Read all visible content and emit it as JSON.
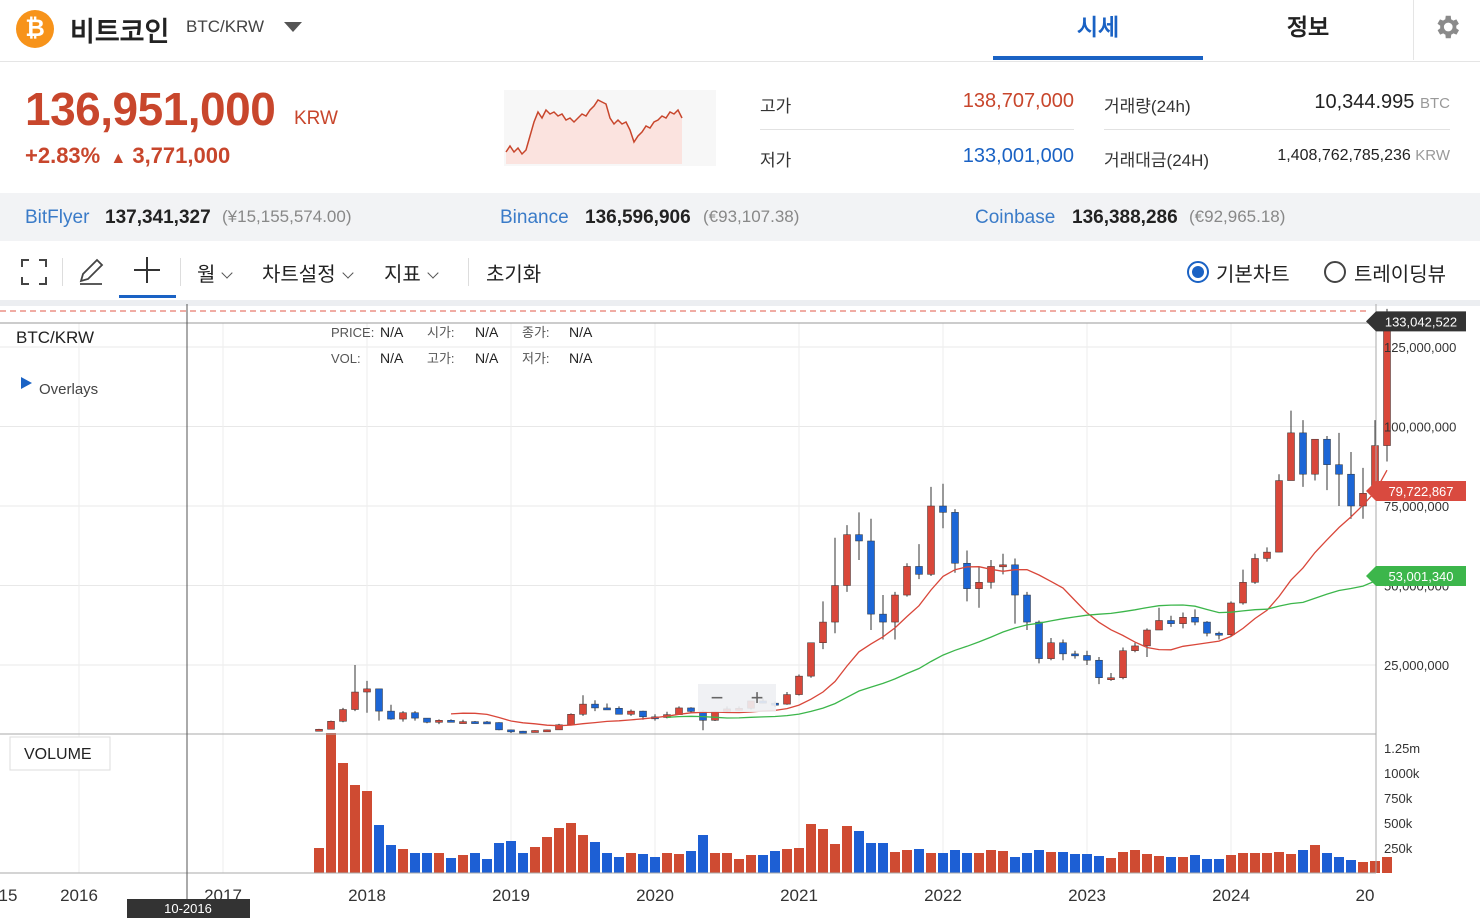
{
  "header": {
    "coin_symbol_glyph": "₿",
    "coin_name": "비트코인",
    "pair": "BTC/KRW",
    "tabs": [
      {
        "label": "시세",
        "active": true
      },
      {
        "label": "정보",
        "active": false
      }
    ]
  },
  "price": {
    "current": "136,951,000",
    "currency": "KRW",
    "change_pct": "+2.83%",
    "change_arrow": "▲",
    "change_abs": "3,771,000"
  },
  "stats": {
    "high_label": "고가",
    "high": "138,707,000",
    "low_label": "저가",
    "low": "133,001,000",
    "volume_label": "거래량(24h)",
    "volume": "10,344.995",
    "volume_unit": "BTC",
    "value_label": "거래대금(24H)",
    "value": "1,408,762,785,236",
    "value_unit": "KRW"
  },
  "exchanges": [
    {
      "name": "BitFlyer",
      "price": "137,341,327",
      "converted": "(¥15,155,574.00)"
    },
    {
      "name": "Binance",
      "price": "136,596,906",
      "converted": "(€93,107.38)"
    },
    {
      "name": "Coinbase",
      "price": "136,388,286",
      "converted": "(€92,965.18)"
    }
  ],
  "toolbar": {
    "period": "월",
    "chart_settings": "차트설정",
    "indicators": "지표",
    "reset": "초기화",
    "view_basic": "기본차트",
    "view_tradingview": "트레이딩뷰",
    "selected_view": "기본차트"
  },
  "chart": {
    "symbol": "BTC/KRW",
    "overlays_label": "Overlays",
    "info": {
      "price_label": "PRICE:",
      "price": "N/A",
      "open_label": "시가:",
      "open": "N/A",
      "close_label": "종가:",
      "close": "N/A",
      "vol_label": "VOL:",
      "vol": "N/A",
      "high_label": "고가:",
      "high": "N/A",
      "low_label": "저가:",
      "low": "N/A"
    },
    "price_axis_ticks": [
      {
        "value": 125000000,
        "label": "125,000,000"
      },
      {
        "value": 100000000,
        "label": "100,000,000"
      },
      {
        "value": 75000000,
        "label": "75,000,000"
      },
      {
        "value": 50000000,
        "label": "50,000,000"
      },
      {
        "value": 25000000,
        "label": "25,000,000"
      }
    ],
    "price_tags": [
      {
        "value": 133042522,
        "label": "133,042,522",
        "color": "#333333"
      },
      {
        "value": 79722867,
        "label": "79,722,867",
        "color": "#d94a3f"
      },
      {
        "value": 53001340,
        "label": "53,001,340",
        "color": "#3cb64b"
      }
    ],
    "volume_label": "VOLUME",
    "volume_ticks": [
      "1.25m",
      "1000k",
      "750k",
      "500k",
      "250k"
    ],
    "x_labels": [
      "15",
      "2016",
      "2017",
      "2018",
      "2019",
      "2020",
      "2021",
      "2022",
      "2023",
      "2024",
      "20"
    ],
    "crosshair_date": "10-2016",
    "zoom_out": "−",
    "zoom_in": "+",
    "up_color": "#d9473a",
    "down_color": "#1c66d6",
    "ma_short_color": "#d9473a",
    "ma_long_color": "#3cb64b"
  },
  "chart_data": {
    "type": "candlestick",
    "xlabel": "",
    "ylabel": "",
    "ylim": [
      0,
      137000000
    ],
    "series": [
      {
        "name": "BTC/KRW",
        "x_start": "2017-09",
        "ohlc": [
          [
            4800000,
            4900000,
            4500000,
            4800000
          ],
          [
            4800000,
            7500000,
            4700000,
            7300000
          ],
          [
            7300000,
            11500000,
            7000000,
            11000000
          ],
          [
            11000000,
            25000000,
            10500000,
            16500000
          ],
          [
            16500000,
            20000000,
            10000000,
            17500000
          ],
          [
            17500000,
            17500000,
            7500000,
            10500000
          ],
          [
            10500000,
            12500000,
            7800000,
            8000000
          ],
          [
            8000000,
            10500000,
            7200000,
            10000000
          ],
          [
            10000000,
            10500000,
            7500000,
            8300000
          ],
          [
            8300000,
            8300000,
            6700000,
            7000000
          ],
          [
            7000000,
            7900000,
            6400000,
            7600000
          ],
          [
            7600000,
            7900000,
            7000000,
            7100000
          ],
          [
            7100000,
            7800000,
            6900000,
            7200000
          ],
          [
            7200000,
            7400000,
            6700000,
            7100000
          ],
          [
            7100000,
            7400000,
            6600000,
            6900000
          ],
          [
            6900000,
            7000000,
            4500000,
            4600000
          ],
          [
            4600000,
            4700000,
            3400000,
            4200000
          ],
          [
            4200000,
            4300000,
            3700000,
            3900000
          ],
          [
            3900000,
            4500000,
            3800000,
            4400000
          ],
          [
            4400000,
            4700000,
            4300000,
            4600000
          ],
          [
            4600000,
            6500000,
            4600000,
            6200000
          ],
          [
            6200000,
            9800000,
            6100000,
            9500000
          ],
          [
            9500000,
            15500000,
            9000000,
            12700000
          ],
          [
            12700000,
            13900000,
            10500000,
            11500000
          ],
          [
            11500000,
            12900000,
            11000000,
            11400000
          ],
          [
            11400000,
            12000000,
            9500000,
            9500000
          ],
          [
            9500000,
            11000000,
            9000000,
            10500000
          ],
          [
            10500000,
            10600000,
            7800000,
            8700000
          ],
          [
            8700000,
            9500000,
            7500000,
            8500000
          ],
          [
            8500000,
            10300000,
            8200000,
            9400000
          ],
          [
            9400000,
            12000000,
            9300000,
            11500000
          ],
          [
            11500000,
            11700000,
            10000000,
            10400000
          ],
          [
            10400000,
            10800000,
            4500000,
            7600000
          ],
          [
            7600000,
            10600000,
            7400000,
            10400000
          ],
          [
            10400000,
            12000000,
            10200000,
            11200000
          ],
          [
            11200000,
            12000000,
            10600000,
            11400000
          ],
          [
            11400000,
            13700000,
            11000000,
            13700000
          ],
          [
            13700000,
            14500000,
            12900000,
            13000000
          ],
          [
            13000000,
            13500000,
            11800000,
            12700000
          ],
          [
            12700000,
            16500000,
            12500000,
            15700000
          ],
          [
            15700000,
            22000000,
            15400000,
            21500000
          ],
          [
            21500000,
            32000000,
            21000000,
            32000000
          ],
          [
            32000000,
            45000000,
            30000000,
            38500000
          ],
          [
            38500000,
            65000000,
            35000000,
            50000000
          ],
          [
            50000000,
            69000000,
            48000000,
            66000000
          ],
          [
            66000000,
            73000000,
            58000000,
            64000000
          ],
          [
            64000000,
            71000000,
            36000000,
            41000000
          ],
          [
            41000000,
            47000000,
            33000000,
            38500000
          ],
          [
            38500000,
            48000000,
            33000000,
            47000000
          ],
          [
            47000000,
            57000000,
            46500000,
            56000000
          ],
          [
            56000000,
            63000000,
            52000000,
            53500000
          ],
          [
            53500000,
            81000000,
            53000000,
            75000000
          ],
          [
            75000000,
            82000000,
            68000000,
            73000000
          ],
          [
            73000000,
            74000000,
            54000000,
            57000000
          ],
          [
            57000000,
            61000000,
            45000000,
            49000000
          ],
          [
            49000000,
            56000000,
            43000000,
            51000000
          ],
          [
            51000000,
            58000000,
            49000000,
            56000000
          ],
          [
            56000000,
            60000000,
            53500000,
            56500000
          ],
          [
            56500000,
            58500000,
            38000000,
            47000000
          ],
          [
            47000000,
            48000000,
            36000000,
            38500000
          ],
          [
            38500000,
            39000000,
            25500000,
            27000000
          ],
          [
            27000000,
            33500000,
            26500000,
            32000000
          ],
          [
            32000000,
            33000000,
            26500000,
            28500000
          ],
          [
            28500000,
            29500000,
            27000000,
            28000000
          ],
          [
            28000000,
            29500000,
            25000000,
            26500000
          ],
          [
            26500000,
            27500000,
            19000000,
            21000000
          ],
          [
            21000000,
            22500000,
            20000000,
            21000000
          ],
          [
            21000000,
            30500000,
            20500000,
            29500000
          ],
          [
            29500000,
            32000000,
            29000000,
            31000000
          ],
          [
            31000000,
            36500000,
            27500000,
            36000000
          ],
          [
            36000000,
            43000000,
            36000000,
            39000000
          ],
          [
            39000000,
            40500000,
            37000000,
            38000000
          ],
          [
            38000000,
            41500000,
            36500000,
            40000000
          ],
          [
            40000000,
            42500000,
            37500000,
            38500000
          ],
          [
            38500000,
            38800000,
            34000000,
            35000000
          ],
          [
            35000000,
            35500000,
            33000000,
            34500000
          ],
          [
            34500000,
            45000000,
            34000000,
            44500000
          ],
          [
            44500000,
            55000000,
            44000000,
            51000000
          ],
          [
            51000000,
            60000000,
            50500000,
            58500000
          ],
          [
            58500000,
            62000000,
            57500000,
            60500000
          ],
          [
            60500000,
            85000000,
            60500000,
            83000000
          ],
          [
            83000000,
            105000000,
            83000000,
            98000000
          ],
          [
            98000000,
            102000000,
            81000000,
            85000000
          ],
          [
            85000000,
            95000000,
            83000000,
            96000000
          ],
          [
            96000000,
            97000000,
            80000000,
            88000000
          ],
          [
            88000000,
            98000000,
            75000000,
            85000000
          ],
          [
            85000000,
            92000000,
            71000000,
            75000000
          ],
          [
            75000000,
            87000000,
            71000000,
            79000000
          ],
          [
            79000000,
            102000000,
            77000000,
            94000000
          ],
          [
            94000000,
            137000000,
            89000000,
            133000000
          ]
        ]
      },
      {
        "name": "volume",
        "values": [
          250,
          1400,
          1100,
          880,
          820,
          480,
          280,
          240,
          200,
          200,
          200,
          150,
          180,
          200,
          140,
          300,
          320,
          200,
          260,
          360,
          450,
          500,
          380,
          310,
          200,
          160,
          200,
          190,
          160,
          200,
          190,
          220,
          380,
          200,
          200,
          140,
          180,
          180,
          220,
          240,
          250,
          490,
          440,
          290,
          470,
          420,
          300,
          300,
          210,
          230,
          240,
          200,
          200,
          230,
          200,
          200,
          230,
          220,
          160,
          200,
          230,
          210,
          210,
          190,
          190,
          170,
          150,
          210,
          230,
          190,
          170,
          160,
          160,
          180,
          140,
          140,
          180,
          200,
          200,
          200,
          210,
          190,
          230,
          280,
          200,
          160,
          130,
          110,
          120,
          160
        ]
      }
    ],
    "moving_averages": [
      {
        "period_months": 12,
        "color": "#d9473a"
      },
      {
        "period_months": 30,
        "color": "#3cb64b"
      }
    ]
  }
}
